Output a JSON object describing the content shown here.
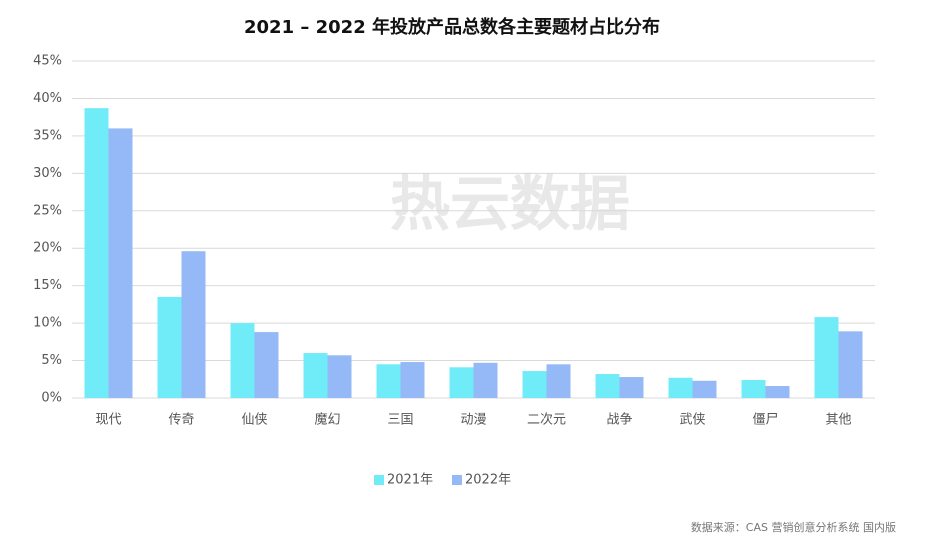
{
  "chart_data": {
    "type": "bar",
    "title": "2021 – 2022 年投放产品总数各主要题材占比分布",
    "categories": [
      "现代",
      "传奇",
      "仙侠",
      "魔幻",
      "三国",
      "动漫",
      "二次元",
      "战争",
      "武侠",
      "僵尸",
      "其他"
    ],
    "series": [
      {
        "name": "2021年",
        "color": "#70ebf8",
        "values": [
          38.7,
          13.5,
          10.0,
          6.0,
          4.5,
          4.1,
          3.6,
          3.2,
          2.7,
          2.4,
          10.8
        ]
      },
      {
        "name": "2022年",
        "color": "#95b9f6",
        "values": [
          36.0,
          19.6,
          8.8,
          5.7,
          4.8,
          4.7,
          4.5,
          2.8,
          2.3,
          1.6,
          8.9
        ]
      }
    ],
    "ylim": [
      0,
      45
    ],
    "yticks": [
      {
        "value": 0,
        "label": "0%"
      },
      {
        "value": 5,
        "label": "5%"
      },
      {
        "value": 10,
        "label": "10%"
      },
      {
        "value": 15,
        "label": "15%"
      },
      {
        "value": 20,
        "label": "20%"
      },
      {
        "value": 25,
        "label": "25%"
      },
      {
        "value": 30,
        "label": "30%"
      },
      {
        "value": 35,
        "label": "35%"
      },
      {
        "value": 40,
        "label": "40%"
      },
      {
        "value": 45,
        "label": "45%"
      }
    ],
    "grid": true,
    "legend": "bottom",
    "watermark": "热云数据",
    "source": "数据来源：CAS 营销创意分析系统 国内版"
  }
}
